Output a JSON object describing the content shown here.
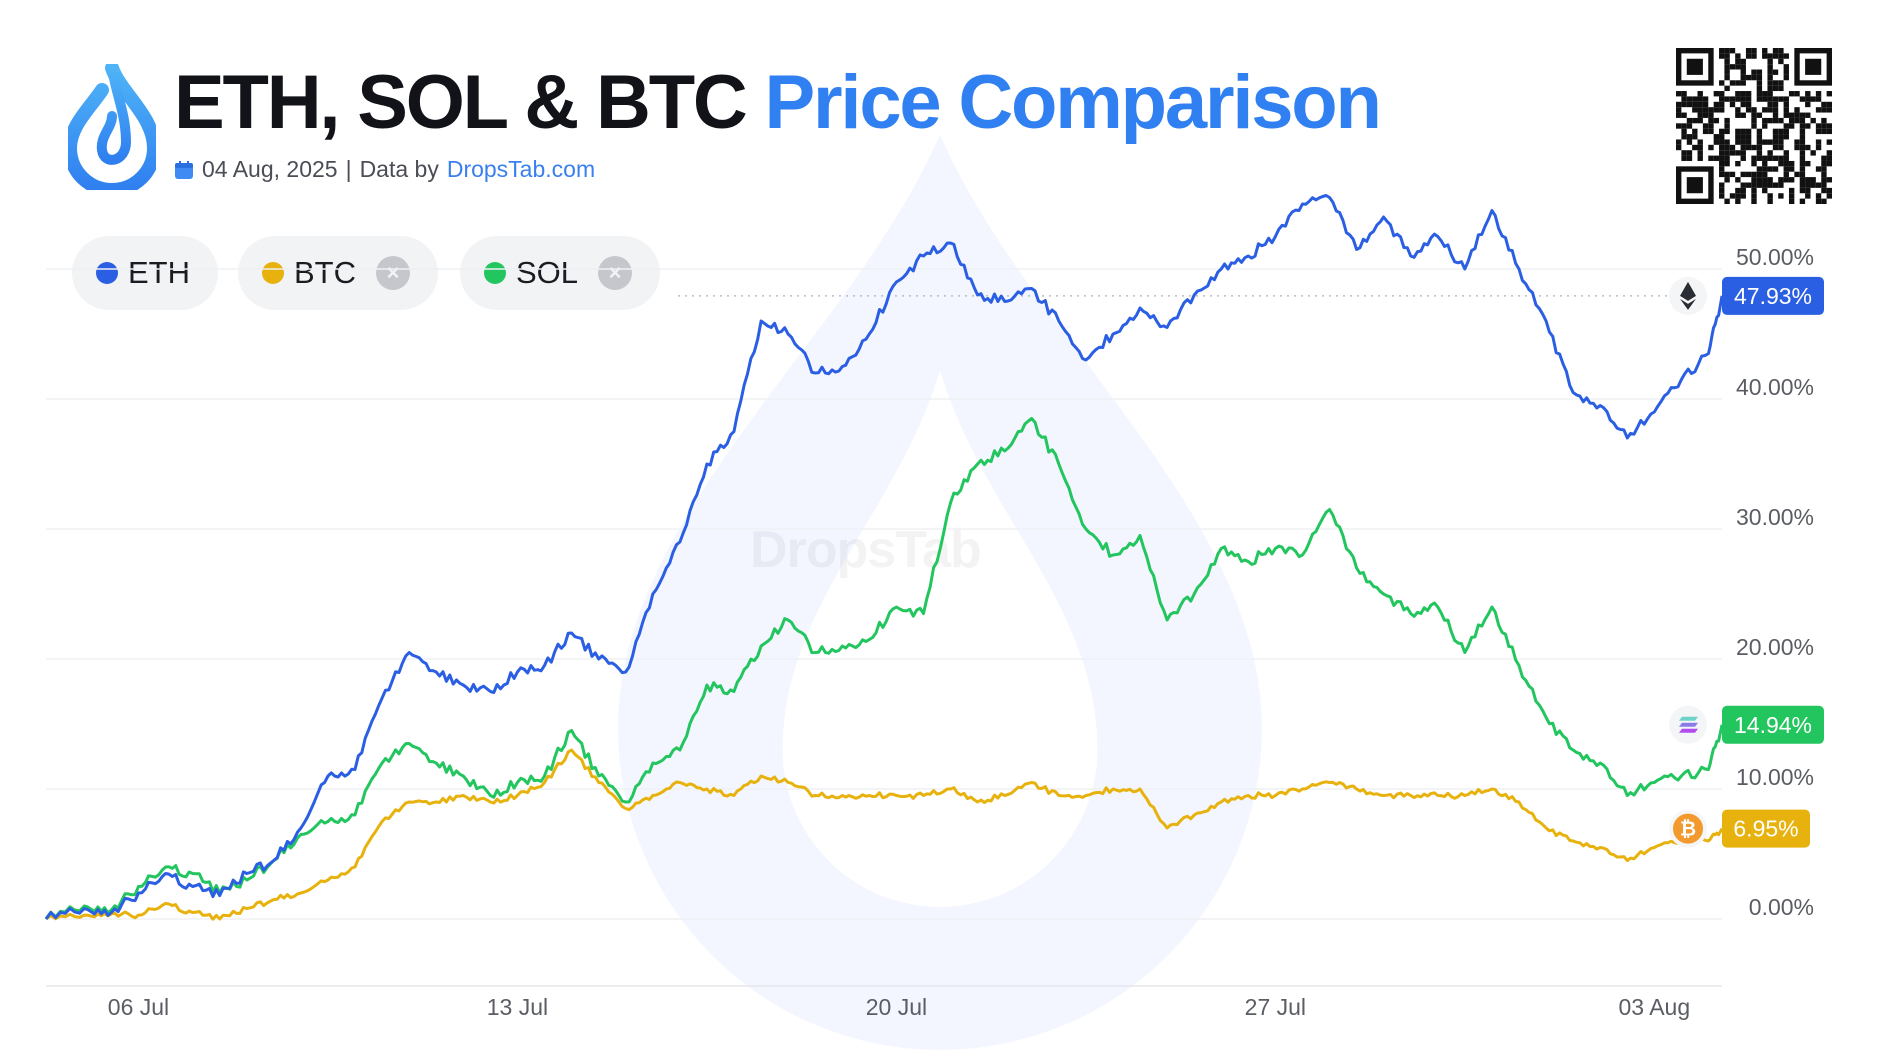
{
  "header": {
    "title_dark": "ETH, SOL & BTC",
    "title_accent": "Price Comparison",
    "date": "04 Aug, 2025",
    "separator": "|",
    "data_by": "Data by",
    "source_link": "DropsTab.com",
    "logo_icon": "droplet-logo-icon",
    "calendar_icon": "calendar-icon",
    "qr_icon": "qr-code-icon"
  },
  "watermark": "DropsTab",
  "legend": [
    {
      "label": "ETH",
      "color": "#2b5fe3",
      "removable": false
    },
    {
      "label": "BTC",
      "color": "#e8b20e",
      "removable": true,
      "remove_label": "×"
    },
    {
      "label": "SOL",
      "color": "#22c55e",
      "removable": true,
      "remove_label": "×"
    }
  ],
  "colors": {
    "eth": "#2b5fe3",
    "sol": "#22c55e",
    "btc": "#e8b20e",
    "accent": "#3080f2"
  },
  "chart_data": {
    "type": "line",
    "title": "ETH, SOL & BTC Price Comparison",
    "xlabel": "",
    "ylabel": "",
    "ylim": [
      -4,
      50
    ],
    "grid": true,
    "legend_placement": "top-left",
    "y_ticks": [
      {
        "value": 0,
        "label": "0.00%"
      },
      {
        "value": 10,
        "label": "10.00%"
      },
      {
        "value": 20,
        "label": "20.00%"
      },
      {
        "value": 30,
        "label": "30.00%"
      },
      {
        "value": 40,
        "label": "40.00%"
      },
      {
        "value": 50,
        "label": "50.00%"
      }
    ],
    "x_ticks": [
      {
        "value": "2025-07-06 00:00",
        "label": "06 Jul"
      },
      {
        "value": "2025-07-13 00:00",
        "label": "13 Jul"
      },
      {
        "value": "2025-07-20 00:00",
        "label": "20 Jul"
      },
      {
        "value": "2025-07-27 00:00",
        "label": "27 Jul"
      },
      {
        "value": "2025-08-03 00:00",
        "label": "03 Aug"
      }
    ],
    "x": [
      "2025-07-04 07:00",
      "2025-07-05 00:00",
      "2025-07-05 12:00",
      "2025-07-06 00:00",
      "2025-07-06 12:00",
      "2025-07-07 00:00",
      "2025-07-07 12:00",
      "2025-07-08 00:00",
      "2025-07-08 12:00",
      "2025-07-09 00:00",
      "2025-07-09 12:00",
      "2025-07-10 00:00",
      "2025-07-10 12:00",
      "2025-07-11 00:00",
      "2025-07-11 12:00",
      "2025-07-12 00:00",
      "2025-07-12 12:00",
      "2025-07-13 00:00",
      "2025-07-13 12:00",
      "2025-07-14 00:00",
      "2025-07-14 12:00",
      "2025-07-15 00:00",
      "2025-07-15 12:00",
      "2025-07-16 00:00",
      "2025-07-16 12:00",
      "2025-07-17 00:00",
      "2025-07-17 12:00",
      "2025-07-18 00:00",
      "2025-07-18 12:00",
      "2025-07-19 00:00",
      "2025-07-19 12:00",
      "2025-07-20 00:00",
      "2025-07-20 12:00",
      "2025-07-21 00:00",
      "2025-07-21 12:00",
      "2025-07-22 00:00",
      "2025-07-22 12:00",
      "2025-07-23 00:00",
      "2025-07-23 12:00",
      "2025-07-24 00:00",
      "2025-07-24 12:00",
      "2025-07-25 00:00",
      "2025-07-25 12:00",
      "2025-07-26 00:00",
      "2025-07-26 12:00",
      "2025-07-27 00:00",
      "2025-07-27 12:00",
      "2025-07-28 00:00",
      "2025-07-28 12:00",
      "2025-07-29 00:00",
      "2025-07-29 12:00",
      "2025-07-30 00:00",
      "2025-07-30 12:00",
      "2025-07-31 00:00",
      "2025-07-31 12:00",
      "2025-08-01 00:00",
      "2025-08-01 12:00",
      "2025-08-02 00:00",
      "2025-08-02 12:00",
      "2025-08-03 00:00",
      "2025-08-03 12:00",
      "2025-08-04 00:00",
      "2025-08-04 06:00"
    ],
    "series": [
      {
        "name": "ETH",
        "key": "eth",
        "last_label": "47.93%",
        "icon": "ethereum-icon",
        "values": [
          0,
          0.8,
          0.5,
          2.0,
          3.5,
          2.5,
          1.8,
          3.5,
          4.5,
          7,
          11,
          11.5,
          17,
          20.5,
          19,
          18,
          17.5,
          19,
          19.5,
          22,
          20,
          19,
          25,
          29,
          35,
          37.5,
          46,
          45,
          42,
          42.5,
          45,
          49,
          51,
          52,
          48,
          47.5,
          48.5,
          46,
          43,
          45,
          47,
          45.5,
          48,
          50,
          51,
          52.5,
          55,
          55.5,
          51.5,
          54,
          51,
          52.5,
          50,
          54.5,
          50,
          46,
          40.5,
          39.5,
          37,
          39,
          41.5,
          43.5,
          47.93
        ]
      },
      {
        "name": "SOL",
        "key": "sol",
        "last_label": "14.94%",
        "icon": "solana-icon",
        "values": [
          0,
          1.0,
          0.7,
          2.5,
          4.0,
          3.5,
          2.0,
          3.0,
          4.5,
          6.5,
          7.5,
          8,
          12,
          13.5,
          12,
          11,
          9.5,
          10.5,
          11,
          14.5,
          11,
          9,
          12,
          13,
          18,
          17.5,
          21,
          23,
          20.5,
          21,
          21.5,
          24,
          23.5,
          32,
          35,
          36,
          38.5,
          35,
          30,
          28,
          29.5,
          23,
          25,
          28.5,
          27.5,
          28.5,
          28,
          31.5,
          27,
          25,
          23.5,
          24,
          20.5,
          24,
          19.5,
          15.5,
          13,
          12,
          9.5,
          10.5,
          11,
          11.5,
          14.94
        ]
      },
      {
        "name": "BTC",
        "key": "btc",
        "last_label": "6.95%",
        "icon": "bitcoin-icon",
        "values": [
          0,
          0.3,
          0.4,
          0.3,
          1.2,
          0.5,
          0,
          0.8,
          1.5,
          2.0,
          3.0,
          4.0,
          7.5,
          9,
          9,
          9.5,
          9,
          9.5,
          10.5,
          13,
          10.5,
          8.5,
          9.5,
          10.5,
          10,
          9.5,
          11,
          10.5,
          9.5,
          9.5,
          9.5,
          9.5,
          9.5,
          10,
          9,
          9.5,
          10.5,
          9.5,
          9.5,
          10,
          10,
          7,
          8,
          9,
          9.5,
          9.5,
          10,
          10.5,
          10,
          9.5,
          9.5,
          9.5,
          9.5,
          10,
          9,
          7,
          6,
          5.5,
          4.5,
          5.5,
          6,
          6,
          6.95
        ]
      }
    ]
  }
}
